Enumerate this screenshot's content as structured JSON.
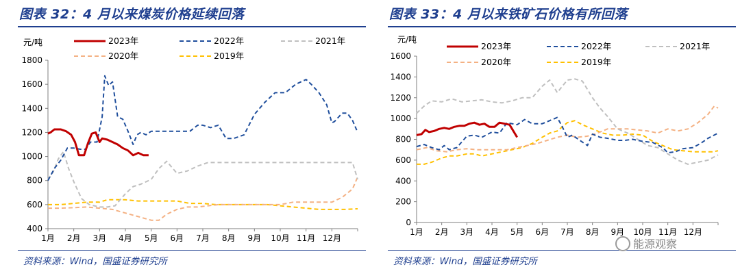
{
  "charts": [
    {
      "title": "图表 32：4 月以来煤炭价格延续回落",
      "source": "资料来源：Wind，国盛证券研究所"
    },
    {
      "title": "图表 33：4 月以来铁矿石价格有所回落",
      "source": "资料来源：Wind，国盛证券研究所"
    }
  ],
  "watermark": "能源观察",
  "chart_data": [
    {
      "type": "line",
      "unit": "元/吨",
      "title": "4 月以来煤炭价格延续回落",
      "ylim": [
        400,
        1800
      ],
      "yticks": [
        400,
        600,
        800,
        1000,
        1200,
        1400,
        1600,
        1800
      ],
      "xlim": [
        1,
        13
      ],
      "xtick_labels": [
        "1月",
        "2月",
        "3月",
        "4月",
        "5月",
        "6月",
        "7月",
        "8月",
        "9月",
        "10月",
        "11月",
        "12月"
      ],
      "legend": "top",
      "series": [
        {
          "name": "2023年",
          "color": "#c00000",
          "dash": "solid",
          "width": 3,
          "x": [
            1.0,
            1.1,
            1.25,
            1.5,
            1.7,
            1.9,
            2.05,
            2.2,
            2.4,
            2.55,
            2.7,
            2.85,
            3.0,
            3.1,
            3.3,
            3.5,
            3.7,
            3.9,
            4.1,
            4.3,
            4.5,
            4.7,
            4.9
          ],
          "y": [
            1190,
            1200,
            1225,
            1225,
            1210,
            1180,
            1120,
            1010,
            1010,
            1110,
            1190,
            1200,
            1120,
            1150,
            1140,
            1120,
            1100,
            1070,
            1050,
            1010,
            1030,
            1010,
            1010
          ]
        },
        {
          "name": "2022年",
          "color": "#1f4e9c",
          "dash": "dashed",
          "width": 2,
          "x": [
            1.0,
            1.25,
            1.5,
            1.75,
            2.0,
            2.25,
            2.45,
            2.65,
            2.9,
            3.1,
            3.2,
            3.35,
            3.5,
            3.7,
            3.9,
            4.1,
            4.3,
            4.45,
            4.6,
            4.8,
            5.0,
            5.5,
            6.0,
            6.5,
            6.8,
            7.0,
            7.3,
            7.6,
            7.9,
            8.2,
            8.6,
            9.0,
            9.4,
            9.8,
            10.2,
            10.6,
            11.0,
            11.2,
            11.5,
            11.8,
            12.0,
            12.1,
            12.4,
            12.6,
            12.8,
            13.0
          ],
          "y": [
            800,
            900,
            970,
            1070,
            1070,
            1060,
            1060,
            1120,
            1120,
            1330,
            1670,
            1590,
            1620,
            1330,
            1310,
            1210,
            1100,
            1180,
            1200,
            1180,
            1210,
            1210,
            1210,
            1210,
            1260,
            1260,
            1240,
            1260,
            1150,
            1150,
            1180,
            1350,
            1450,
            1530,
            1530,
            1600,
            1640,
            1600,
            1530,
            1430,
            1280,
            1290,
            1360,
            1360,
            1300,
            1200
          ]
        },
        {
          "name": "2021年",
          "color": "#bfbfbf",
          "dash": "dashed",
          "width": 2,
          "x": [
            1.0,
            1.2,
            1.4,
            1.6,
            1.8,
            2.0,
            2.3,
            2.6,
            3.0,
            3.3,
            3.6,
            4.0,
            4.3,
            4.6,
            5.0,
            5.3,
            5.6,
            5.8,
            6.0,
            6.4,
            6.8,
            7.2,
            7.6,
            8.0,
            9.0,
            10.0,
            11.0,
            12.0,
            12.8,
            13.0
          ],
          "y": [
            810,
            870,
            980,
            1040,
            900,
            790,
            650,
            600,
            580,
            580,
            590,
            690,
            750,
            770,
            810,
            900,
            960,
            910,
            860,
            880,
            920,
            950,
            950,
            950,
            950,
            950,
            950,
            950,
            950,
            810
          ]
        },
        {
          "name": "2020年",
          "color": "#f4b183",
          "dash": "dashed",
          "width": 2,
          "x": [
            1.0,
            1.5,
            2.0,
            2.5,
            3.0,
            3.5,
            4.0,
            4.5,
            5.0,
            5.3,
            5.6,
            6.0,
            6.4,
            6.8,
            7.2,
            7.6,
            8.0,
            8.5,
            9.0,
            9.5,
            10.0,
            10.5,
            11.0,
            11.5,
            12.0,
            12.4,
            12.8,
            13.0
          ],
          "y": [
            570,
            570,
            575,
            580,
            570,
            560,
            530,
            500,
            470,
            470,
            520,
            560,
            580,
            580,
            590,
            600,
            600,
            600,
            600,
            600,
            600,
            620,
            620,
            620,
            620,
            660,
            730,
            830
          ]
        },
        {
          "name": "2019年",
          "color": "#ffc000",
          "dash": "dashed",
          "width": 2,
          "x": [
            1.0,
            1.5,
            2.0,
            2.5,
            3.0,
            3.3,
            3.6,
            4.0,
            4.5,
            5.0,
            5.5,
            6.0,
            6.5,
            7.0,
            7.5,
            8.0,
            8.5,
            9.0,
            9.5,
            10.0,
            10.5,
            11.0,
            11.5,
            12.0,
            12.5,
            13.0
          ],
          "y": [
            600,
            600,
            610,
            620,
            620,
            640,
            640,
            640,
            630,
            630,
            630,
            630,
            610,
            610,
            600,
            600,
            600,
            600,
            600,
            590,
            580,
            570,
            560,
            560,
            560,
            565
          ]
        }
      ]
    },
    {
      "type": "line",
      "unit": "元/吨",
      "title": "4 月以来铁矿石价格有所回落",
      "ylim": [
        0,
        1600
      ],
      "yticks": [
        0,
        200,
        400,
        600,
        800,
        1000,
        1200,
        1400,
        1600
      ],
      "xlim": [
        1,
        13
      ],
      "xtick_labels": [
        "1月",
        "2月",
        "3月",
        "4月",
        "5月",
        "6月",
        "7月",
        "8月",
        "9月",
        "10月",
        "11月",
        "12月"
      ],
      "legend": "top",
      "series": [
        {
          "name": "2023年",
          "color": "#c00000",
          "dash": "solid",
          "width": 3,
          "x": [
            1.0,
            1.2,
            1.35,
            1.5,
            1.7,
            1.9,
            2.1,
            2.3,
            2.5,
            2.7,
            2.9,
            3.1,
            3.3,
            3.5,
            3.7,
            3.9,
            4.1,
            4.3,
            4.5,
            4.7,
            4.85,
            5.0
          ],
          "y": [
            840,
            850,
            890,
            870,
            880,
            900,
            910,
            900,
            920,
            930,
            930,
            950,
            960,
            940,
            950,
            920,
            920,
            960,
            950,
            940,
            880,
            820
          ]
        },
        {
          "name": "2022年",
          "color": "#1f4e9c",
          "dash": "dashed",
          "width": 2,
          "x": [
            1.0,
            1.3,
            1.6,
            1.9,
            2.1,
            2.3,
            2.6,
            3.0,
            3.3,
            3.6,
            4.0,
            4.3,
            4.6,
            5.0,
            5.3,
            5.6,
            6.0,
            6.3,
            6.6,
            6.8,
            7.0,
            7.2,
            7.5,
            7.8,
            8.0,
            8.3,
            8.6,
            9.0,
            9.3,
            9.6,
            10.0,
            10.4,
            10.8,
            11.0,
            11.3,
            11.6,
            12.0,
            12.3,
            12.6,
            13.0
          ],
          "y": [
            730,
            750,
            720,
            700,
            740,
            700,
            720,
            830,
            840,
            820,
            870,
            860,
            960,
            940,
            990,
            950,
            950,
            980,
            1010,
            920,
            820,
            840,
            790,
            740,
            850,
            820,
            810,
            790,
            790,
            800,
            780,
            770,
            720,
            670,
            680,
            710,
            720,
            760,
            810,
            860
          ]
        },
        {
          "name": "2021年",
          "color": "#bfbfbf",
          "dash": "dashed",
          "width": 2,
          "x": [
            1.0,
            1.3,
            1.6,
            2.0,
            2.4,
            2.8,
            3.2,
            3.6,
            4.0,
            4.4,
            4.8,
            5.2,
            5.6,
            6.0,
            6.3,
            6.6,
            7.0,
            7.3,
            7.6,
            8.0,
            8.3,
            8.6,
            9.0,
            9.4,
            9.8,
            10.2,
            10.6,
            11.0,
            11.4,
            11.8,
            12.2,
            12.6,
            13.0
          ],
          "y": [
            1050,
            1120,
            1170,
            1160,
            1190,
            1160,
            1170,
            1180,
            1160,
            1150,
            1170,
            1200,
            1200,
            1310,
            1370,
            1250,
            1370,
            1380,
            1360,
            1200,
            1100,
            1020,
            900,
            860,
            800,
            740,
            720,
            660,
            600,
            560,
            580,
            600,
            650
          ]
        },
        {
          "name": "2020年",
          "color": "#f4b183",
          "dash": "dashed",
          "width": 2,
          "x": [
            1.0,
            1.4,
            1.8,
            2.2,
            2.6,
            3.0,
            3.4,
            3.8,
            4.2,
            4.6,
            5.0,
            5.4,
            5.8,
            6.2,
            6.6,
            7.0,
            7.4,
            7.8,
            8.2,
            8.6,
            9.0,
            9.4,
            9.8,
            10.2,
            10.6,
            11.0,
            11.4,
            11.8,
            12.2,
            12.6,
            12.85,
            13.0
          ],
          "y": [
            700,
            720,
            690,
            680,
            700,
            710,
            700,
            700,
            700,
            700,
            720,
            740,
            760,
            790,
            820,
            840,
            820,
            830,
            860,
            900,
            900,
            900,
            890,
            880,
            860,
            900,
            880,
            900,
            960,
            1040,
            1120,
            1100
          ]
        },
        {
          "name": "2019年",
          "color": "#ffc000",
          "dash": "dashed",
          "width": 2,
          "x": [
            1.0,
            1.3,
            1.6,
            2.0,
            2.3,
            2.6,
            3.0,
            3.3,
            3.6,
            4.0,
            4.4,
            4.8,
            5.2,
            5.6,
            6.0,
            6.3,
            6.6,
            7.0,
            7.3,
            7.6,
            8.0,
            8.4,
            8.8,
            9.2,
            9.6,
            10.0,
            10.4,
            10.8,
            11.2,
            11.6,
            12.0,
            12.4,
            12.8,
            13.0
          ],
          "y": [
            560,
            560,
            580,
            620,
            640,
            640,
            660,
            660,
            640,
            660,
            680,
            700,
            720,
            760,
            820,
            860,
            880,
            960,
            980,
            940,
            900,
            860,
            840,
            840,
            850,
            840,
            780,
            740,
            700,
            690,
            680,
            680,
            680,
            690
          ]
        }
      ]
    }
  ]
}
